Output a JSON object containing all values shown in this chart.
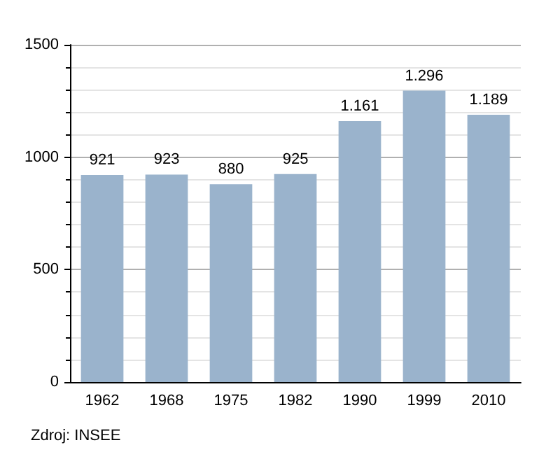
{
  "chart_data": {
    "type": "bar",
    "categories": [
      "1962",
      "1968",
      "1975",
      "1982",
      "1990",
      "1999",
      "2010"
    ],
    "values": [
      921,
      923,
      880,
      925,
      1161,
      1296,
      1189
    ],
    "value_labels": [
      "921",
      "923",
      "880",
      "925",
      "1.161",
      "1.296",
      "1.189"
    ],
    "color": "#9ab3cc",
    "ylim": [
      0,
      1500
    ],
    "yticks": [
      0,
      500,
      1000,
      1500
    ],
    "grid": "y",
    "annotations": [
      "Zdroj: INSEE"
    ]
  }
}
